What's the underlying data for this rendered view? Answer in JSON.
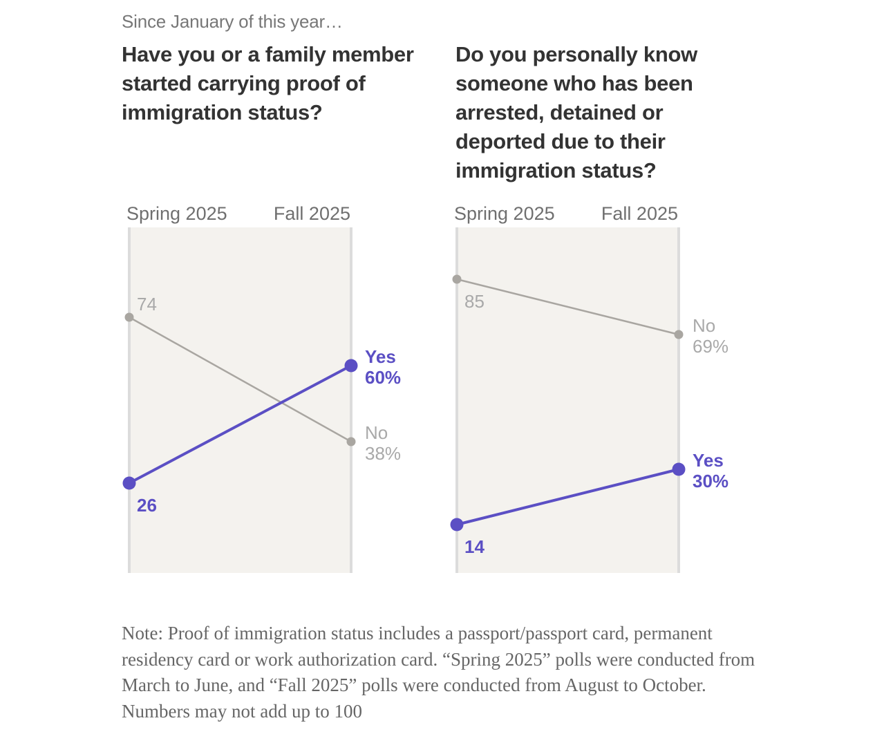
{
  "kicker": "Since January of this year…",
  "colors": {
    "yes": "#5b4fc4",
    "no": "#a9a6a1",
    "band": "#f4f2ee",
    "axis": "#dcdcdc"
  },
  "chart_data": [
    {
      "type": "line",
      "title": "Have you or a family member started carrying proof of immigration status?",
      "categories": [
        "Spring 2025",
        "Fall 2025"
      ],
      "ylim": [
        0,
        100
      ],
      "series": [
        {
          "name": "No",
          "values": [
            74,
            38
          ],
          "start_label": "74",
          "end_label_name": "No",
          "end_label_value": "38%"
        },
        {
          "name": "Yes",
          "values": [
            26,
            60
          ],
          "start_label": "26",
          "end_label_name": "Yes",
          "end_label_value": "60%"
        }
      ]
    },
    {
      "type": "line",
      "title": "Do you personally know someone who has been arrested, detained or deported due to their immigration status?",
      "categories": [
        "Spring 2025",
        "Fall 2025"
      ],
      "ylim": [
        0,
        100
      ],
      "series": [
        {
          "name": "No",
          "values": [
            85,
            69
          ],
          "start_label": "85",
          "end_label_name": "No",
          "end_label_value": "69%"
        },
        {
          "name": "Yes",
          "values": [
            14,
            30
          ],
          "start_label": "14",
          "end_label_name": "Yes",
          "end_label_value": "30%"
        }
      ]
    }
  ],
  "note": "Note: Proof of immigration status includes a passport/passport card, permanent residency card or work authorization card. “Spring 2025” polls were conducted from March to June, and “Fall 2025” polls were conducted from August to October. Numbers may not add up to 100"
}
